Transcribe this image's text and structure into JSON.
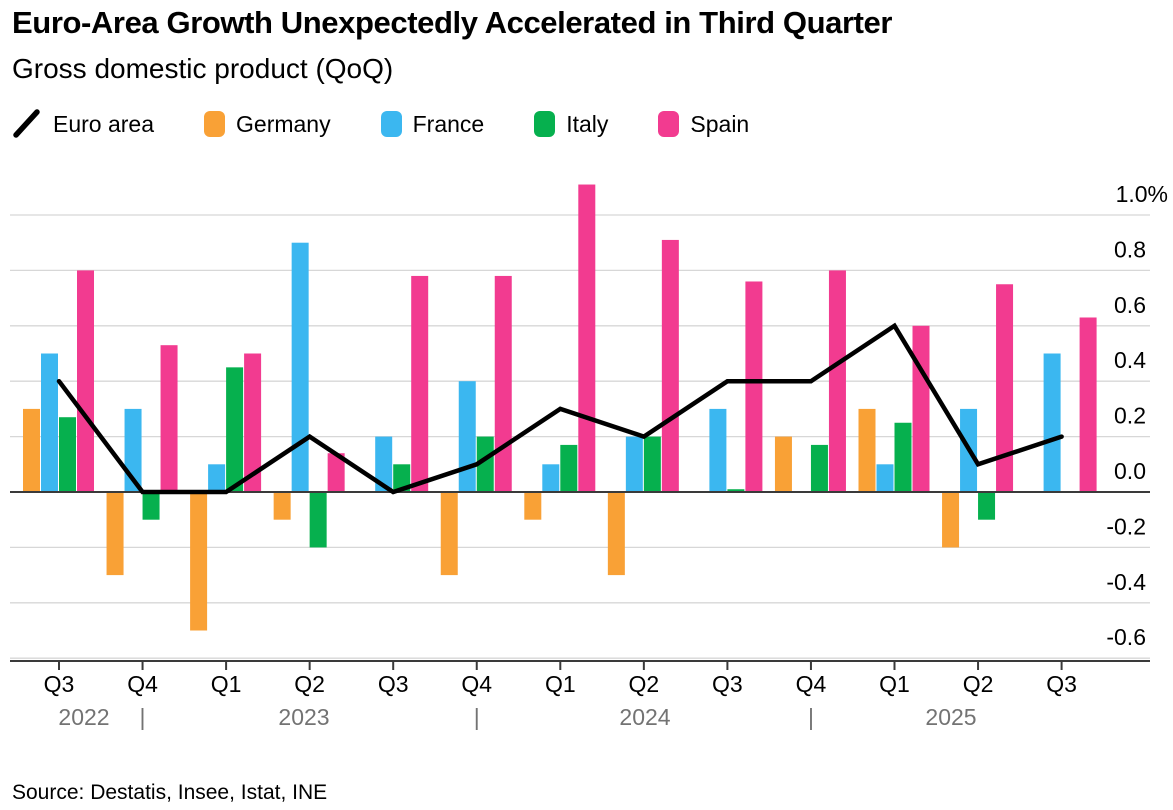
{
  "header": {
    "title": "Euro-Area Growth Unexpectedly Accelerated in Third Quarter",
    "subtitle": "Gross domestic product (QoQ)"
  },
  "legend": [
    {
      "label": "Euro area",
      "color": "#000000",
      "symbol": "line"
    },
    {
      "label": "Germany",
      "color": "#F9A136",
      "symbol": "swatch"
    },
    {
      "label": "France",
      "color": "#3BB7F0",
      "symbol": "swatch"
    },
    {
      "label": "Italy",
      "color": "#06B04E",
      "symbol": "swatch"
    },
    {
      "label": "Spain",
      "color": "#F23B90",
      "symbol": "swatch"
    }
  ],
  "source": "Source: Destatis, Insee, Istat, INE",
  "chart_data": {
    "type": "bar",
    "subtype": "grouped-bars-with-line-overlay",
    "title": "Euro-Area Growth Unexpectedly Accelerated in Third Quarter",
    "subtitle": "Gross domestic product (QoQ)",
    "unit": "%",
    "grid": "horizontal",
    "legend_position": "top",
    "categories": [
      "Q3 2022",
      "Q4 2022",
      "Q1 2023",
      "Q2 2023",
      "Q3 2023",
      "Q4 2023",
      "Q1 2024",
      "Q2 2024",
      "Q3 2024",
      "Q4 2024",
      "Q1 2025",
      "Q2 2025",
      "Q3 2025"
    ],
    "series": [
      {
        "name": "Germany",
        "color": "#F9A136",
        "values": [
          0.3,
          -0.3,
          -0.5,
          -0.1,
          0,
          -0.3,
          -0.1,
          -0.3,
          0,
          0.2,
          0.3,
          -0.2,
          0
        ]
      },
      {
        "name": "France",
        "color": "#3BB7F0",
        "values": [
          0.5,
          0.3,
          0.1,
          0.9,
          0.2,
          0.4,
          0.1,
          0.2,
          0.3,
          0,
          0.1,
          0.3,
          0.5
        ]
      },
      {
        "name": "Italy",
        "color": "#06B04E",
        "values": [
          0.27,
          -0.1,
          0.45,
          -0.2,
          0.1,
          0.2,
          0.17,
          0.2,
          0.01,
          0.17,
          0.25,
          -0.1,
          0
        ]
      },
      {
        "name": "Spain",
        "color": "#F23B90",
        "values": [
          0.8,
          0.53,
          0.5,
          0.14,
          0.78,
          0.78,
          1.11,
          0.91,
          0.76,
          0.8,
          0.6,
          0.75,
          0.63
        ]
      }
    ],
    "line_series": {
      "name": "Euro area",
      "color": "#000000",
      "values": [
        0.4,
        0,
        0,
        0.2,
        0,
        0.1,
        0.3,
        0.2,
        0.4,
        0.4,
        0.6,
        0.1,
        0.2
      ]
    },
    "yticks": [
      {
        "v": 1.0,
        "label": "1.0%"
      },
      {
        "v": 0.8,
        "label": "0.8"
      },
      {
        "v": 0.6,
        "label": "0.6"
      },
      {
        "v": 0.4,
        "label": "0.4"
      },
      {
        "v": 0.2,
        "label": "0.2"
      },
      {
        "v": 0.0,
        "label": "0.0"
      },
      {
        "v": -0.2,
        "label": "-0.2"
      },
      {
        "v": -0.4,
        "label": "-0.4"
      },
      {
        "v": -0.6,
        "label": "-0.6"
      }
    ],
    "ylim": [
      -0.61,
      1.12
    ],
    "years": [
      "2022",
      "2023",
      "2024",
      "2025"
    ],
    "year_separator": "|"
  }
}
